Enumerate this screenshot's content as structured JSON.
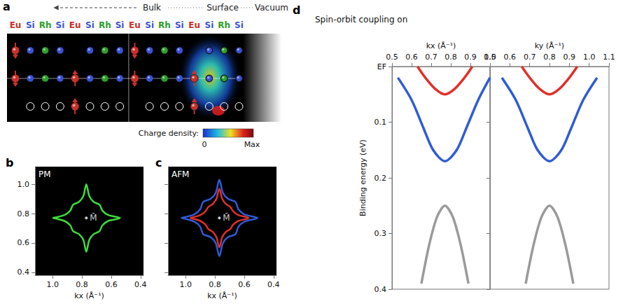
{
  "panel_a": {
    "panel": "a",
    "header": [
      "Bulk",
      "Surface",
      "Vacuum"
    ],
    "atoms": [
      {
        "label": "Eu",
        "color": "#c8312b"
      },
      {
        "label": "Si",
        "color": "#3b52d4"
      },
      {
        "label": "Rh",
        "color": "#2ca02c"
      },
      {
        "label": "Si",
        "color": "#3b52d4"
      },
      {
        "label": "Eu",
        "color": "#c8312b"
      },
      {
        "label": "Si",
        "color": "#3b52d4"
      },
      {
        "label": "Rh",
        "color": "#2ca02c"
      },
      {
        "label": "Si",
        "color": "#3b52d4"
      },
      {
        "label": "Eu",
        "color": "#c8312b"
      },
      {
        "label": "Si",
        "color": "#3b52d4"
      },
      {
        "label": "Rh",
        "color": "#2ca02c"
      },
      {
        "label": "Si",
        "color": "#3b52d4"
      },
      {
        "label": "Eu",
        "color": "#c8312b"
      },
      {
        "label": "Si",
        "color": "#3b52d4"
      },
      {
        "label": "Rh",
        "color": "#2ca02c"
      },
      {
        "label": "Si",
        "color": "#3b52d4"
      }
    ],
    "colorbar": {
      "title": "Charge density:",
      "labels": [
        "0",
        "Max"
      ]
    }
  },
  "chart_data": [
    {
      "panel": "b",
      "type": "line",
      "text": "PM",
      "xlabel": "kx (Å⁻¹)",
      "xlim": [
        1.12,
        0.38
      ],
      "xticks": [
        {
          "value": 1,
          "label": "1.0"
        },
        0.8,
        0.6,
        0.4
      ],
      "ylim": [
        0.38,
        1.12
      ],
      "yticks": [
        0.4,
        0.6,
        0.8,
        {
          "value": 1,
          "label": "1.0"
        }
      ],
      "annotations": [
        {
          "text": "M̄",
          "x": 0.77,
          "y": 0.77
        }
      ],
      "series": [
        {
          "color": "#3ddc3d",
          "x": [
            1.0,
            0.92,
            0.88,
            0.86,
            0.82,
            0.79,
            0.77,
            0.75,
            0.72,
            0.68,
            0.66,
            0.62,
            0.54,
            0.62,
            0.66,
            0.68,
            0.72,
            0.75,
            0.77,
            0.79,
            0.82,
            0.86,
            0.88,
            0.92,
            1.0
          ],
          "values": [
            0.77,
            0.79,
            0.82,
            0.86,
            0.88,
            0.92,
            1.0,
            0.92,
            0.88,
            0.86,
            0.82,
            0.79,
            0.77,
            0.75,
            0.72,
            0.68,
            0.66,
            0.62,
            0.54,
            0.62,
            0.66,
            0.68,
            0.72,
            0.75,
            0.77
          ]
        }
      ]
    },
    {
      "panel": "c",
      "type": "line",
      "text": "AFM",
      "xlabel": "kx (Å⁻¹)",
      "tick_labels": "x",
      "xlim": [
        1.12,
        0.38
      ],
      "xticks": [
        {
          "value": 1,
          "label": "1.0"
        },
        0.8,
        0.6,
        0.4
      ],
      "ylim": [
        0.38,
        1.12
      ],
      "yticks": [
        0.4,
        0.6,
        0.8,
        {
          "value": 1,
          "label": "1.0"
        }
      ],
      "annotations": [
        {
          "text": "M̄",
          "x": 0.77,
          "y": 0.77
        }
      ],
      "series": [
        {
          "color": "#2f5bd6",
          "x": [
            1.03,
            0.94,
            0.9,
            0.88,
            0.83,
            0.795,
            0.77,
            0.745,
            0.71,
            0.66,
            0.64,
            0.6,
            0.51,
            0.6,
            0.64,
            0.66,
            0.71,
            0.745,
            0.77,
            0.795,
            0.83,
            0.88,
            0.9,
            0.94,
            1.03
          ],
          "values": [
            0.77,
            0.795,
            0.83,
            0.88,
            0.9,
            0.94,
            1.03,
            0.94,
            0.9,
            0.88,
            0.83,
            0.795,
            0.77,
            0.745,
            0.71,
            0.66,
            0.64,
            0.6,
            0.51,
            0.6,
            0.64,
            0.66,
            0.71,
            0.745,
            0.77
          ]
        },
        {
          "color": "#e0302a",
          "x": [
            0.97,
            0.9,
            0.865,
            0.845,
            0.815,
            0.79,
            0.77,
            0.75,
            0.725,
            0.695,
            0.675,
            0.64,
            0.57,
            0.64,
            0.675,
            0.695,
            0.725,
            0.75,
            0.77,
            0.79,
            0.815,
            0.845,
            0.865,
            0.9,
            0.97
          ],
          "values": [
            0.77,
            0.79,
            0.815,
            0.845,
            0.865,
            0.9,
            0.97,
            0.9,
            0.865,
            0.845,
            0.815,
            0.79,
            0.77,
            0.75,
            0.725,
            0.695,
            0.675,
            0.64,
            0.57,
            0.64,
            0.675,
            0.695,
            0.725,
            0.75,
            0.77
          ]
        }
      ]
    },
    {
      "panel": "d",
      "type": "line",
      "title": "Spin-orbit coupling on",
      "xlabel": "kx (Å⁻¹)",
      "ylabel": "Binding energy (eV)",
      "xlim": [
        0.5,
        1.0
      ],
      "xticks": [
        0.5,
        0.6,
        0.7,
        0.8,
        0.9,
        {
          "value": 1,
          "label": "1.0"
        }
      ],
      "ylim": [
        0,
        0.4
      ],
      "yticks": [
        {
          "value": 0,
          "label": "EF"
        },
        0.1,
        0.2,
        0.3,
        0.4
      ],
      "series": [
        {
          "color": "#2f5bd6",
          "x": [
            0.53,
            0.6,
            0.66,
            0.71,
            0.77,
            0.83,
            0.88,
            0.94,
            1.0
          ],
          "values": [
            0.02,
            0.06,
            0.11,
            0.15,
            0.17,
            0.15,
            0.11,
            0.06,
            0.02
          ]
        },
        {
          "color": "#e0302a",
          "x": [
            0.63,
            0.67,
            0.72,
            0.77,
            0.82,
            0.87,
            0.91
          ],
          "values": [
            0.0,
            0.02,
            0.04,
            0.05,
            0.04,
            0.02,
            0.0
          ]
        },
        {
          "color": "#9a9a9a",
          "x": [
            0.65,
            0.69,
            0.73,
            0.77,
            0.81,
            0.85,
            0.89
          ],
          "values": [
            0.39,
            0.32,
            0.27,
            0.25,
            0.27,
            0.32,
            0.39
          ]
        }
      ]
    },
    {
      "type": "line",
      "xlabel": "ky (Å⁻¹)",
      "tick_labels": "x",
      "xlim": [
        0.5,
        1.1
      ],
      "xticks": [
        0.5,
        0.6,
        0.7,
        0.8,
        0.9,
        {
          "value": 1,
          "label": "1.0"
        },
        1.1
      ],
      "ylim": [
        0,
        0.4
      ],
      "yticks": [
        {
          "value": 0,
          "label": "EF"
        },
        0.1,
        0.2,
        0.3,
        0.4
      ],
      "series": [
        {
          "color": "#2f5bd6",
          "x": [
            0.56,
            0.63,
            0.69,
            0.74,
            0.8,
            0.86,
            0.91,
            0.97,
            1.04
          ],
          "values": [
            0.02,
            0.06,
            0.11,
            0.15,
            0.17,
            0.15,
            0.11,
            0.06,
            0.02
          ]
        },
        {
          "color": "#e0302a",
          "x": [
            0.66,
            0.7,
            0.75,
            0.8,
            0.85,
            0.9,
            0.94
          ],
          "values": [
            0.0,
            0.02,
            0.04,
            0.05,
            0.04,
            0.02,
            0.0
          ]
        },
        {
          "color": "#9a9a9a",
          "x": [
            0.68,
            0.72,
            0.76,
            0.8,
            0.84,
            0.88,
            0.92
          ],
          "values": [
            0.39,
            0.32,
            0.27,
            0.25,
            0.27,
            0.32,
            0.39
          ]
        }
      ]
    }
  ]
}
